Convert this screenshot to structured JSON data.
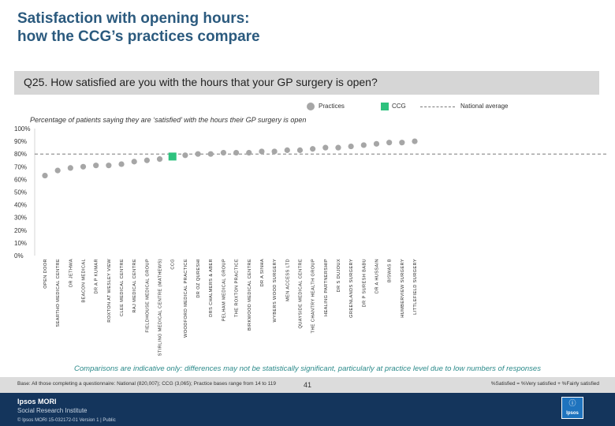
{
  "title_line1": "Satisfaction with opening hours:",
  "title_line2": "how the CCG’s practices compare",
  "question": "Q25. How satisfied are you with the hours that your GP surgery is open?",
  "legend": {
    "practices": "Practices",
    "ccg": "CCG",
    "national": "National average"
  },
  "colors": {
    "practice": "#a6a6a6",
    "ccg": "#2ec27e",
    "title": "#2b5a7e",
    "footer": "#14355c"
  },
  "chart_data": {
    "type": "scatter",
    "title": "Percentage of patients saying they are ‘satisfied’ with the hours their GP surgery is open",
    "ylim": [
      0,
      100
    ],
    "yticks": [
      "0%",
      "10%",
      "20%",
      "30%",
      "40%",
      "50%",
      "60%",
      "70%",
      "80%",
      "90%",
      "100%"
    ],
    "national_average": 80,
    "categories": [
      "OPEN DOOR",
      "SEARTHO MEDICAL CENTRE",
      "DR JETHWA",
      "BEACON MEDICAL",
      "DR A P KUMAR",
      "ROXTON AT WESLEY VIEW",
      "CLEE MEDICAL CENTRE",
      "RAJ MEDICAL CENTRE",
      "FIELDHOUSE MEDICAL GROUP",
      "STIRLING MEDICAL CENTRE (MATHEWS)",
      "CCG",
      "WOODFORD MEDICAL PRACTICE",
      "DR OZ QURESHI",
      "DRS CHALMERS & ABER",
      "PELHAM MEDICAL GROUP",
      "THE ROXTON PRACTICE",
      "BIRKWOOD MEDICAL CENTRE",
      "DR A SINHA",
      "WYBERS WOOD SURGERY",
      "MEN ACCESS LTD",
      "QUAYSIDE MEDICAL CENTRE",
      "THE CHANTRY HEALTH GROUP",
      "HEALING PARTNERSHIP",
      "DR S DUJOUX",
      "GREENLANDS SURGERY",
      "DR P SURESH BABU",
      "DR A HUSSAIN",
      "BISWAS B",
      "HUMBERVIEW SURGERY",
      "LITTLEFIELD SURGERY"
    ],
    "values": [
      63,
      67,
      69,
      70,
      71,
      71,
      72,
      74,
      75,
      76,
      78,
      79,
      80,
      80,
      81,
      81,
      81,
      82,
      82,
      83,
      83,
      84,
      85,
      85,
      86,
      87,
      88,
      89,
      89,
      90
    ],
    "ccg_index": 10
  },
  "comparison_note": "Comparisons are indicative only: differences may not be statistically significant, particularly at practice level due to low numbers of responses",
  "base_note": "Base: All those completing a questionnaire: National (820,007); CCG (3,065); Practice bases range from 14 to 119",
  "satisfied_def": "%Satisfied = %Very satisfied + %Fairly satisfied",
  "page_number": "41",
  "logo_main": "Ipsos MORI",
  "logo_sub": "Social Research Institute",
  "copyright": "© Ipsos MORI    15-032172-01 Version 1 | Public",
  "badge_label": "Ipsos"
}
